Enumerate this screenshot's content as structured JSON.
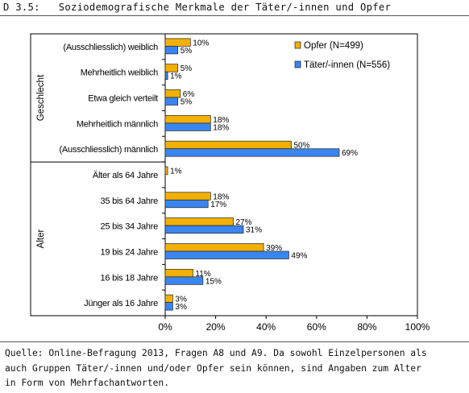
{
  "heading": {
    "number": "D 3.5:",
    "title": "Soziodemografische Merkmale der Täter/-innen und Opfer"
  },
  "chart_data": {
    "type": "bar",
    "orientation": "horizontal",
    "categories": [
      "(Ausschliesslich) weiblich",
      "Mehrheitlich weiblich",
      "Etwa gleich verteilt",
      "Mehrheitlich männlich",
      "(Ausschliesslich) männlich",
      "Älter als 64 Jahre",
      "35 bis 64 Jahre",
      "25 bis 34 Jahre",
      "19 bis 24 Jahre",
      "16 bis 18 Jahre",
      "Jünger als 16 Jahre"
    ],
    "groups": [
      {
        "label": "Geschlecht",
        "from": 0,
        "to": 4
      },
      {
        "label": "Alter",
        "from": 5,
        "to": 10
      }
    ],
    "series": [
      {
        "name": "Opfer (N=499)",
        "color": "#f2b000",
        "values": [
          10,
          5,
          6,
          18,
          50,
          1,
          18,
          27,
          39,
          11,
          3
        ],
        "labels": [
          "10%",
          "5%",
          "6%",
          "18%",
          "50%",
          "1%",
          "18%",
          "27%",
          "39%",
          "11%",
          "3%"
        ]
      },
      {
        "name": "Täter/-innen (N=556)",
        "color": "#3a86f0",
        "values": [
          5,
          1,
          5,
          18,
          69,
          null,
          17,
          31,
          49,
          15,
          3
        ],
        "labels": [
          "5%",
          "1%",
          "5%",
          "18%",
          "69%",
          "",
          "17%",
          "31%",
          "49%",
          "15%",
          "3%"
        ]
      }
    ],
    "xlim": [
      0,
      100
    ],
    "xticks": [
      "0%",
      "20%",
      "40%",
      "60%",
      "80%",
      "100%"
    ],
    "legend_position": "top-right",
    "grid": false
  },
  "footer": {
    "lines": [
      "Quelle: Online-Befragung 2013, Fragen A8 und A9. Da sowohl Einzelpersonen als",
      "auch Gruppen Täter/-innen und/oder Opfer sein können, sind Angaben zum Alter",
      "in Form von Mehrfachantworten."
    ]
  }
}
